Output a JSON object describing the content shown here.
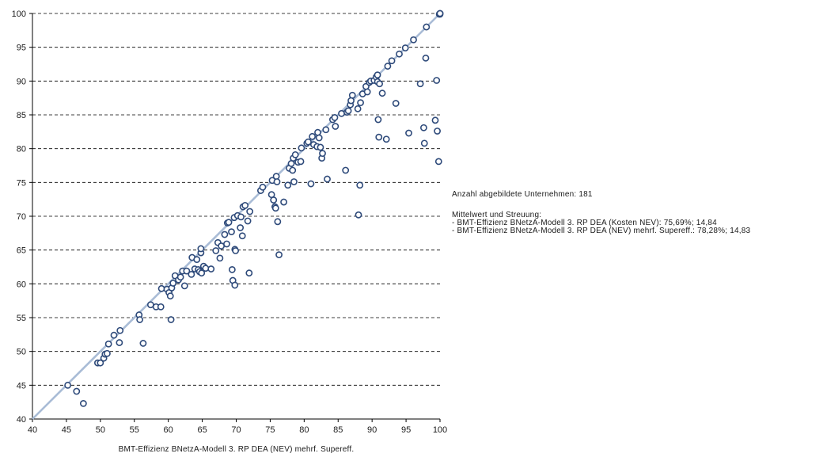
{
  "chart_data": {
    "type": "scatter",
    "title": "",
    "xlabel": "BMT-Effizienz BNetzA-Modell 3. RP DEA (NEV) mehrf. Supereff.",
    "ylabel": "",
    "xlim": [
      40,
      100
    ],
    "ylim": [
      40,
      100
    ],
    "x_ticks": [
      "40",
      "45",
      "50",
      "55",
      "60",
      "65",
      "70",
      "75",
      "80",
      "85",
      "90",
      "95",
      "100"
    ],
    "y_ticks": [
      "40",
      "45",
      "50",
      "55",
      "60",
      "65",
      "70",
      "75",
      "80",
      "85",
      "90",
      "95",
      "100"
    ],
    "horizontal_grid": "dashed",
    "reference_line": {
      "from": [
        40,
        40
      ],
      "to": [
        100,
        100
      ]
    },
    "colors": {
      "marker": "#2e4a7a",
      "reference_line": "#a9bcd6",
      "grid": "#000000"
    },
    "points": [
      [
        45.2,
        45.0
      ],
      [
        46.5,
        44.1
      ],
      [
        47.5,
        42.3
      ],
      [
        49.6,
        48.3
      ],
      [
        50.0,
        48.3
      ],
      [
        50.5,
        49.0
      ],
      [
        50.7,
        49.6
      ],
      [
        51.0,
        49.7
      ],
      [
        51.2,
        51.1
      ],
      [
        52.0,
        52.4
      ],
      [
        52.8,
        51.3
      ],
      [
        52.9,
        53.1
      ],
      [
        55.7,
        55.4
      ],
      [
        55.8,
        54.7
      ],
      [
        56.3,
        51.2
      ],
      [
        57.4,
        56.9
      ],
      [
        58.2,
        56.6
      ],
      [
        58.9,
        56.6
      ],
      [
        59.0,
        59.3
      ],
      [
        59.8,
        59.2
      ],
      [
        60.1,
        58.7
      ],
      [
        60.3,
        58.2
      ],
      [
        60.4,
        54.7
      ],
      [
        60.5,
        59.4
      ],
      [
        60.7,
        60.1
      ],
      [
        61.0,
        61.2
      ],
      [
        61.5,
        60.6
      ],
      [
        61.8,
        61.0
      ],
      [
        62.1,
        61.9
      ],
      [
        62.4,
        59.7
      ],
      [
        62.7,
        61.9
      ],
      [
        63.4,
        61.4
      ],
      [
        63.5,
        63.9
      ],
      [
        63.9,
        62.2
      ],
      [
        64.2,
        63.6
      ],
      [
        64.4,
        62.1
      ],
      [
        64.6,
        61.8
      ],
      [
        64.8,
        64.6
      ],
      [
        64.8,
        65.2
      ],
      [
        64.9,
        61.6
      ],
      [
        65.2,
        62.6
      ],
      [
        65.5,
        62.3
      ],
      [
        66.3,
        62.2
      ],
      [
        67.0,
        64.9
      ],
      [
        67.3,
        66.1
      ],
      [
        67.6,
        63.8
      ],
      [
        67.8,
        65.6
      ],
      [
        68.3,
        67.3
      ],
      [
        68.6,
        65.9
      ],
      [
        68.7,
        69.0
      ],
      [
        68.9,
        69.1
      ],
      [
        69.3,
        67.7
      ],
      [
        69.4,
        62.1
      ],
      [
        69.5,
        60.5
      ],
      [
        69.7,
        69.8
      ],
      [
        69.8,
        59.8
      ],
      [
        69.8,
        65.1
      ],
      [
        69.9,
        64.9
      ],
      [
        70.2,
        70.1
      ],
      [
        70.6,
        68.3
      ],
      [
        70.7,
        69.9
      ],
      [
        70.9,
        67.1
      ],
      [
        71.0,
        71.4
      ],
      [
        71.3,
        71.6
      ],
      [
        71.9,
        61.6
      ],
      [
        72.0,
        70.7
      ],
      [
        71.7,
        69.3
      ],
      [
        73.6,
        73.8
      ],
      [
        73.9,
        74.3
      ],
      [
        75.2,
        73.2
      ],
      [
        75.3,
        75.3
      ],
      [
        75.5,
        72.4
      ],
      [
        75.7,
        71.4
      ],
      [
        75.8,
        71.2
      ],
      [
        75.9,
        75.9
      ],
      [
        76.0,
        75.1
      ],
      [
        76.1,
        69.2
      ],
      [
        76.3,
        64.3
      ],
      [
        77.0,
        72.1
      ],
      [
        77.6,
        74.6
      ],
      [
        77.8,
        77.1
      ],
      [
        78.1,
        77.8
      ],
      [
        78.3,
        76.8
      ],
      [
        78.4,
        78.6
      ],
      [
        78.5,
        75.1
      ],
      [
        78.7,
        79.1
      ],
      [
        79.1,
        78.0
      ],
      [
        79.5,
        78.1
      ],
      [
        79.6,
        80.1
      ],
      [
        80.4,
        80.8
      ],
      [
        80.6,
        81.0
      ],
      [
        81.0,
        74.8
      ],
      [
        81.2,
        81.8
      ],
      [
        81.4,
        80.6
      ],
      [
        81.9,
        80.3
      ],
      [
        82.0,
        82.4
      ],
      [
        82.2,
        81.6
      ],
      [
        82.4,
        80.2
      ],
      [
        82.6,
        78.6
      ],
      [
        82.7,
        79.3
      ],
      [
        83.2,
        82.8
      ],
      [
        83.4,
        75.5
      ],
      [
        84.2,
        84.3
      ],
      [
        84.5,
        84.6
      ],
      [
        84.6,
        83.3
      ],
      [
        85.5,
        85.2
      ],
      [
        86.1,
        76.8
      ],
      [
        86.3,
        85.4
      ],
      [
        86.5,
        85.6
      ],
      [
        86.8,
        86.5
      ],
      [
        86.9,
        87.1
      ],
      [
        87.1,
        87.9
      ],
      [
        87.9,
        85.9
      ],
      [
        88.0,
        70.2
      ],
      [
        88.2,
        74.6
      ],
      [
        88.3,
        86.8
      ],
      [
        88.6,
        88.1
      ],
      [
        89.1,
        89.2
      ],
      [
        89.3,
        88.4
      ],
      [
        89.6,
        89.8
      ],
      [
        89.8,
        90.0
      ],
      [
        90.3,
        90.1
      ],
      [
        90.6,
        90.6
      ],
      [
        90.8,
        90.9
      ],
      [
        90.8,
        89.9
      ],
      [
        90.9,
        84.3
      ],
      [
        91.0,
        81.7
      ],
      [
        91.1,
        89.6
      ],
      [
        91.5,
        88.2
      ],
      [
        92.1,
        81.4
      ],
      [
        92.3,
        92.2
      ],
      [
        92.9,
        93.0
      ],
      [
        93.5,
        86.7
      ],
      [
        94.0,
        94.0
      ],
      [
        94.9,
        94.9
      ],
      [
        95.4,
        82.3
      ],
      [
        96.1,
        96.1
      ],
      [
        97.1,
        89.6
      ],
      [
        97.6,
        83.1
      ],
      [
        97.7,
        80.8
      ],
      [
        97.9,
        93.4
      ],
      [
        98.0,
        98.0
      ],
      [
        99.3,
        84.2
      ],
      [
        99.5,
        90.1
      ],
      [
        99.6,
        82.6
      ],
      [
        99.8,
        78.1
      ],
      [
        99.9,
        99.9
      ],
      [
        100.0,
        100.0
      ],
      [
        100.0,
        99.9
      ],
      [
        100.0,
        100.0
      ]
    ]
  },
  "annotations": {
    "count": "Anzahl abgebildete Unternehmen: 181",
    "stats_heading": "Mittelwert und Streuung:",
    "stats_line1": "- BMT-Effizienz BNetzA-Modell 3. RP DEA (Kosten NEV): 75,69%; 14,84",
    "stats_line2": "- BMT-Effizienz BNetzA-Modell 3. RP DEA (NEV) mehrf. Supereff.: 78,28%; 14,83"
  }
}
